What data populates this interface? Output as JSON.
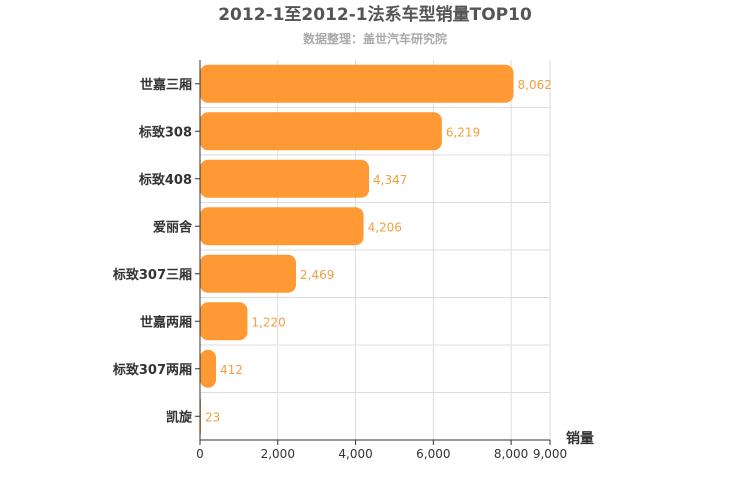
{
  "chart_data": {
    "type": "bar",
    "orientation": "horizontal",
    "title": "2012-1至2012-1法系车型销量TOP10",
    "subtitle": "数据整理：盖世汽车研究院",
    "xlabel": "销量",
    "ylabel": "",
    "categories": [
      "世嘉三厢",
      "标致308",
      "标致408",
      "爱丽舍",
      "标致307三厢",
      "世嘉两厢",
      "标致307两厢",
      "凯旋"
    ],
    "values": [
      8062,
      6219,
      4347,
      4206,
      2469,
      1220,
      412,
      23
    ],
    "value_labels": [
      "8,062",
      "6,219",
      "4,347",
      "4,206",
      "2,469",
      "1,220",
      "412",
      "23"
    ],
    "xlim": [
      0,
      9000
    ],
    "x_ticks": [
      0,
      2000,
      4000,
      6000,
      8000,
      9000
    ],
    "x_tick_labels": [
      "0",
      "2,000",
      "4,000",
      "6,000",
      "8,000",
      "9,000"
    ],
    "grid": true,
    "bar_color": "#ff9933",
    "label_color": "#f0a040"
  }
}
